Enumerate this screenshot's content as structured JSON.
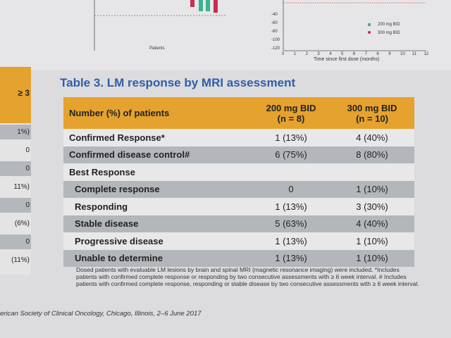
{
  "charts": {
    "left_x_label": "Patients",
    "right_x_label": "Time since first dose (months)",
    "right_xticks": [
      "0",
      "1",
      "2",
      "3",
      "4",
      "5",
      "6",
      "7",
      "8",
      "9",
      "10",
      "11",
      "12"
    ],
    "right_yticks": [
      "-40",
      "-60",
      "-80",
      "-100",
      "-120"
    ],
    "legend": [
      "200 mg BID",
      "300 mg BID"
    ]
  },
  "side_table": {
    "header": "≥ 3",
    "cells": [
      "1%)",
      "0",
      "0",
      "11%)",
      "0",
      "(6%)",
      "0",
      "(11%)"
    ]
  },
  "table": {
    "title": "Table 3. LM response by MRI assessment",
    "header": [
      "Number (%) of patients",
      "200 mg BID\n(n = 8)",
      "300 mg BID\n(n = 10)"
    ],
    "rows": [
      {
        "label": "Confirmed Response*",
        "cells": [
          "1 (13%)",
          "4 (40%)"
        ]
      },
      {
        "label": "Confirmed disease control#",
        "cells": [
          "6 (75%)",
          "8 (80%)"
        ]
      },
      {
        "label": "Best Response"
      },
      {
        "label": "Complete response",
        "cells": [
          "0",
          "1 (10%)"
        ]
      },
      {
        "label": "Responding",
        "cells": [
          "1 (13%)",
          "3 (30%)"
        ]
      },
      {
        "label": "Stable disease",
        "cells": [
          "5 (63%)",
          "4 (40%)"
        ]
      },
      {
        "label": "Progressive disease",
        "cells": [
          "1 (13%)",
          "1 (10%)"
        ]
      },
      {
        "label": "Unable to determine",
        "cells": [
          "1 (13%)",
          "1 (10%)"
        ]
      }
    ],
    "footnote": "Dosed patients with evaluable LM lesions by brain and spinal MRI (magnetic resonance imaging) were included. *Includes patients with confirmed complete response or responding by two consecutive assessments with ≥ 6 week interval. # Includes patients with confirmed complete response, responding or stable disease by two consecutive assessments with ≥ 6 week interval."
  },
  "footer": "erican Society of Clinical Oncology, Chicago, Illinois, 2–6 June 2017"
}
